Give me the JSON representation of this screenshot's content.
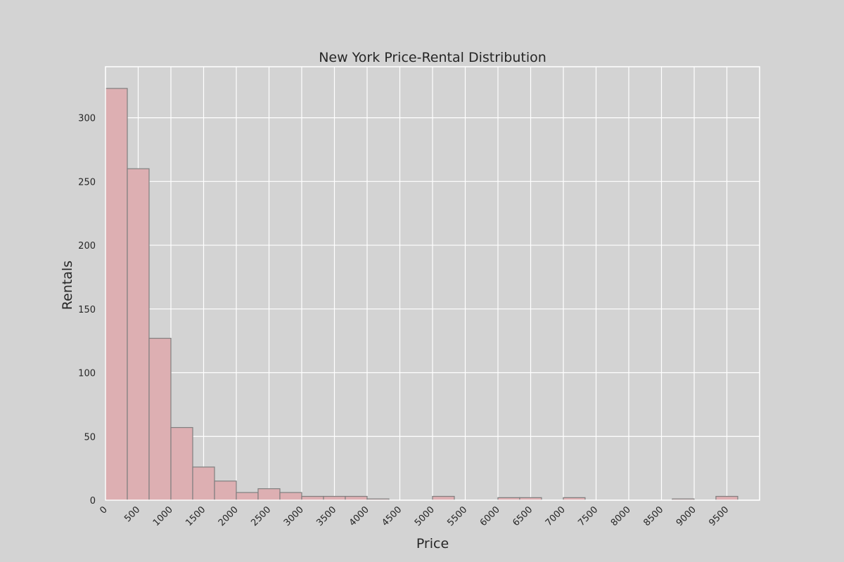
{
  "chart_data": {
    "type": "bar",
    "title": "New York Price-Rental Distribution",
    "xlabel": "Price",
    "ylabel": "Rentals",
    "bin_width": 333.3,
    "bin_start": 0,
    "values": [
      323,
      260,
      127,
      57,
      26,
      15,
      6,
      9,
      6,
      3,
      3,
      3,
      1,
      0,
      0,
      3,
      0,
      0,
      2,
      2,
      0,
      2,
      0,
      0,
      0,
      0,
      1,
      0,
      3
    ],
    "xlim": [
      0,
      10000
    ],
    "ylim": [
      0,
      340
    ],
    "x_ticks": [
      "0",
      "500",
      "1000",
      "1500",
      "2000",
      "2500",
      "3000",
      "3500",
      "4000",
      "4500",
      "5000",
      "5500",
      "6000",
      "6500",
      "7000",
      "7500",
      "8000",
      "8500",
      "9000",
      "9500"
    ],
    "x_tick_values": [
      0,
      500,
      1000,
      1500,
      2000,
      2500,
      3000,
      3500,
      4000,
      4500,
      5000,
      5500,
      6000,
      6500,
      7000,
      7500,
      8000,
      8500,
      9000,
      9500
    ],
    "y_ticks": [
      "0",
      "50",
      "100",
      "150",
      "200",
      "250",
      "300"
    ],
    "y_tick_values": [
      0,
      50,
      100,
      150,
      200,
      250,
      300
    ],
    "grid": true,
    "colors": {
      "background": "#d3d3d3",
      "bar_fill": "#ddafb2",
      "bar_edge": "#7f7f7f",
      "grid": "#ffffff",
      "text": "#262626"
    }
  }
}
